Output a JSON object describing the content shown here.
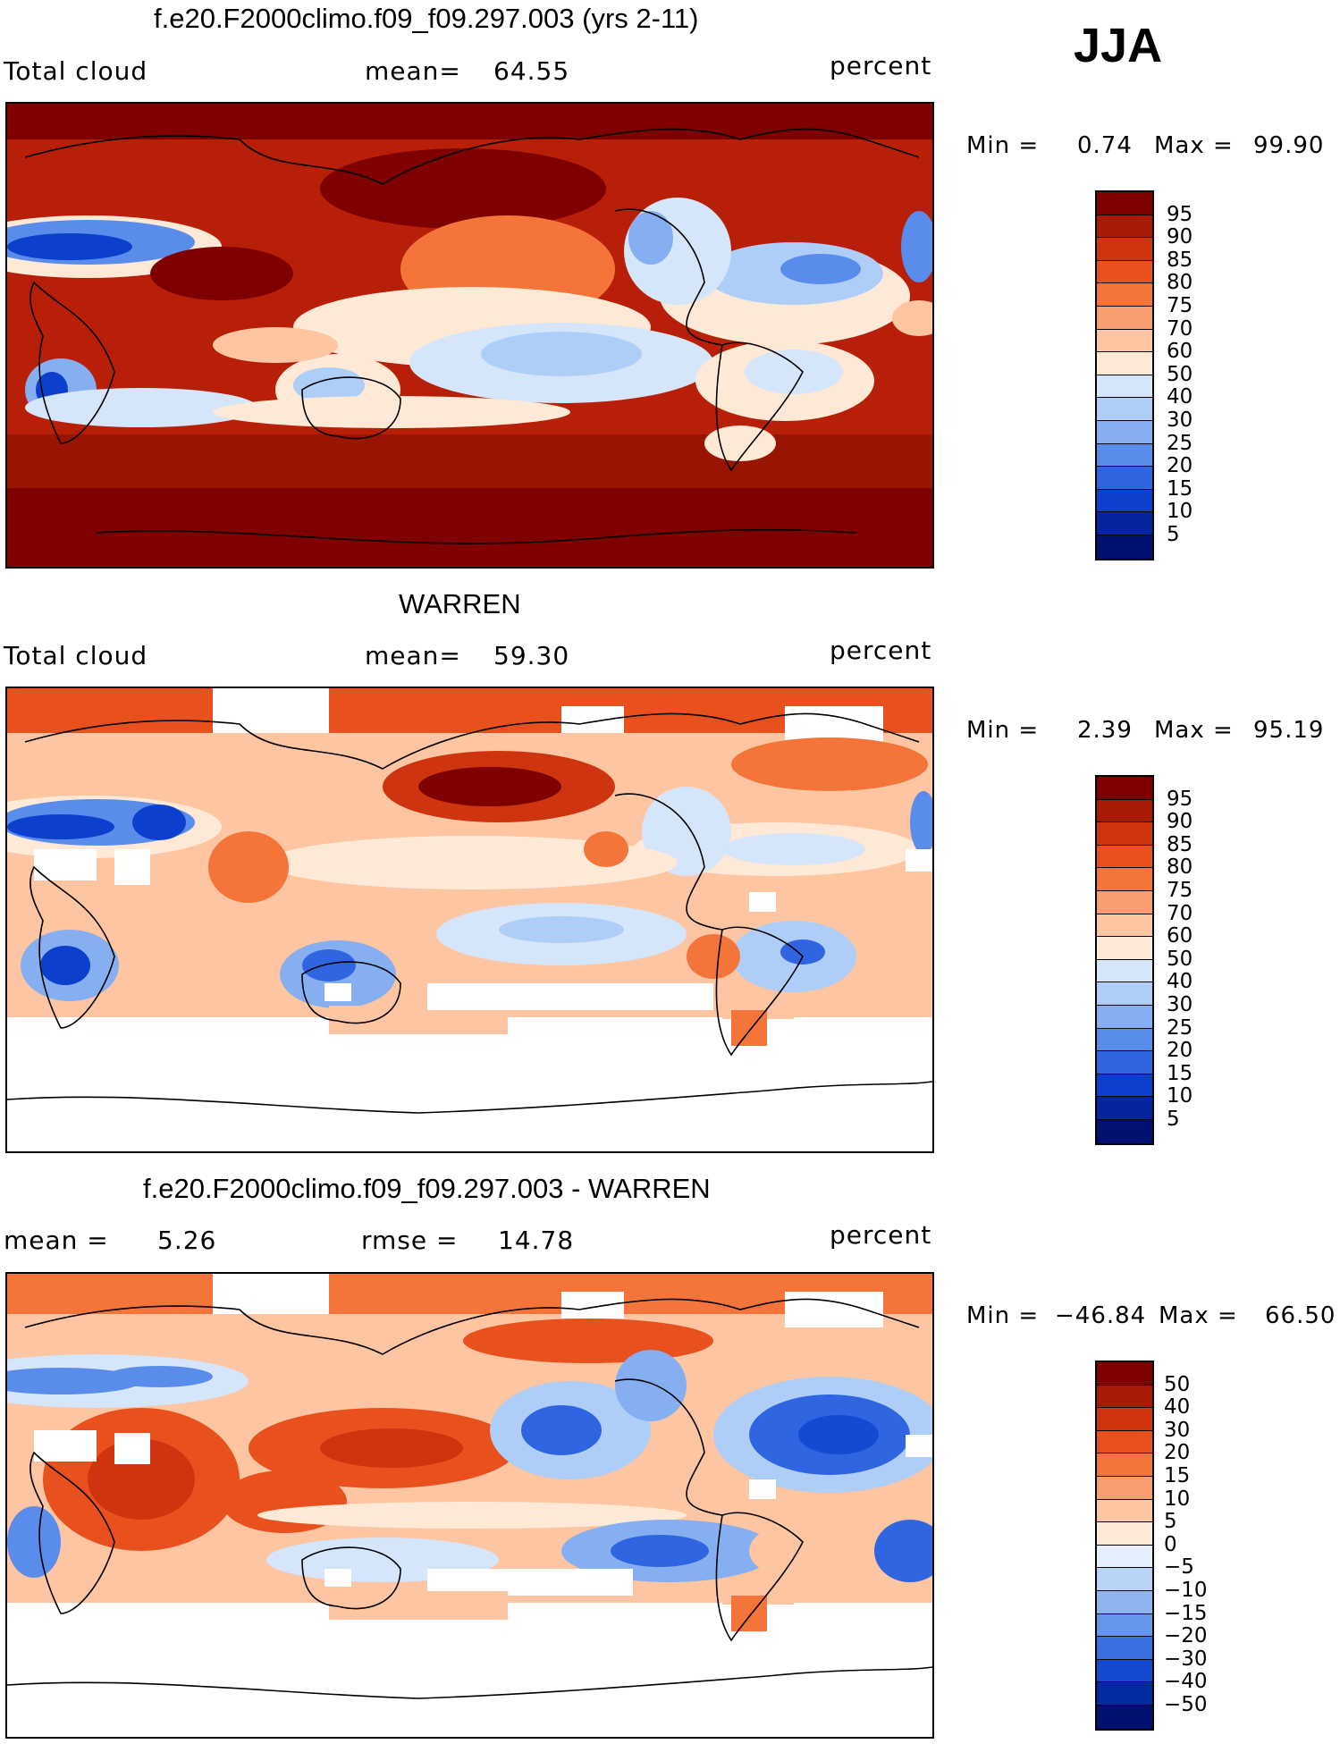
{
  "season": "JJA",
  "panels": [
    {
      "title": "f.e20.F2000climo.f09_f09.297.003 (yrs 2-11)",
      "left_label": "Total cloud",
      "stat1_label": "mean=",
      "stat1_value": "64.55",
      "units": "percent",
      "min_label": "Min =",
      "min_value": "0.74",
      "max_label": "Max =",
      "max_value": "99.90",
      "colorbar_labels": [
        "95",
        "90",
        "85",
        "80",
        "75",
        "70",
        "60",
        "50",
        "40",
        "30",
        "25",
        "20",
        "15",
        "10",
        "5"
      ]
    },
    {
      "title": "WARREN",
      "left_label": "Total cloud",
      "stat1_label": "mean=",
      "stat1_value": "59.30",
      "units": "percent",
      "min_label": "Min =",
      "min_value": "2.39",
      "max_label": "Max =",
      "max_value": "95.19",
      "colorbar_labels": [
        "95",
        "90",
        "85",
        "80",
        "75",
        "70",
        "60",
        "50",
        "40",
        "30",
        "25",
        "20",
        "15",
        "10",
        "5"
      ]
    },
    {
      "title": "f.e20.F2000climo.f09_f09.297.003 - WARREN",
      "left_label": "mean =",
      "left_value": "5.26",
      "stat1_label": "rmse =",
      "stat1_value": "14.78",
      "units": "percent",
      "min_label": "Min =",
      "min_value": "−46.84",
      "max_label": "Max =",
      "max_value": "66.50",
      "colorbar_labels": [
        "50",
        "40",
        "30",
        "20",
        "15",
        "10",
        "5",
        "0",
        "−5",
        "−10",
        "−15",
        "−20",
        "−30",
        "−40",
        "−50"
      ]
    }
  ],
  "colors": {
    "abs": [
      "#7f0000",
      "#a81a05",
      "#cf3410",
      "#e8511e",
      "#f4743a",
      "#f99e6e",
      "#fdc5a1",
      "#fde9d6",
      "#d5e5fa",
      "#aecdf7",
      "#85aff1",
      "#5a8deb",
      "#2f65e0",
      "#0c3fcc",
      "#04259e",
      "#00106e"
    ],
    "diff": [
      "#7f0000",
      "#a81a05",
      "#cf3410",
      "#e8511e",
      "#f4743a",
      "#f99e6e",
      "#fdc5a1",
      "#fde9d6",
      "#e6f0fc",
      "#b9d3f7",
      "#8fb5f1",
      "#6496ea",
      "#3a6fe2",
      "#144ad2",
      "#042a9f",
      "#00106e"
    ]
  }
}
